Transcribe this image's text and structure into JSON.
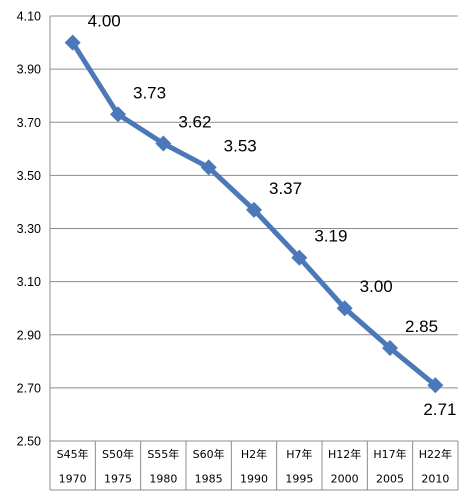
{
  "chart_data": {
    "type": "line",
    "categories": [
      {
        "era": "S45年",
        "year": "1970"
      },
      {
        "era": "S50年",
        "year": "1975"
      },
      {
        "era": "S55年",
        "year": "1980"
      },
      {
        "era": "S60年",
        "year": "1985"
      },
      {
        "era": "H2年",
        "year": "1990"
      },
      {
        "era": "H7年",
        "year": "1995"
      },
      {
        "era": "H12年",
        "year": "2000"
      },
      {
        "era": "H17年",
        "year": "2005"
      },
      {
        "era": "H22年",
        "year": "2010"
      }
    ],
    "series": [
      {
        "values": [
          4.0,
          3.73,
          3.62,
          3.53,
          3.37,
          3.19,
          3.0,
          2.85,
          2.71
        ],
        "labels": [
          "4.00",
          "3.73",
          "3.62",
          "3.53",
          "3.37",
          "3.19",
          "3.00",
          "2.85",
          "2.71"
        ],
        "color": "#4a78b8",
        "marker": "diamond"
      }
    ],
    "yticks": [
      "4.10",
      "3.90",
      "3.70",
      "3.50",
      "3.30",
      "3.10",
      "2.90",
      "2.70",
      "2.50"
    ],
    "ylim": [
      2.5,
      4.1
    ],
    "title": "",
    "xlabel": "",
    "ylabel": "",
    "grid": true,
    "legend": "none"
  }
}
